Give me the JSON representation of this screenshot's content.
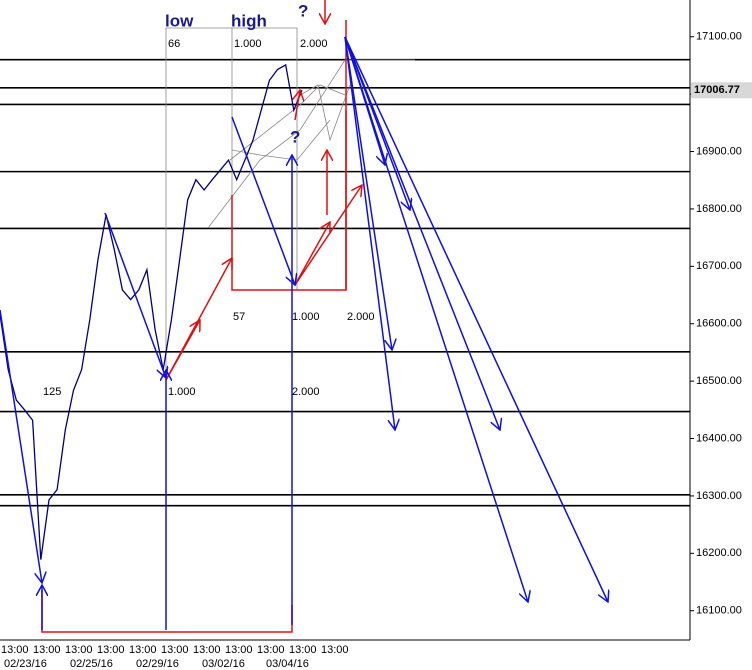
{
  "chart_data": {
    "type": "line",
    "color": "#000080",
    "values": [
      16616,
      16520,
      16467,
      16450,
      16432,
      16189,
      16293,
      16311,
      16415,
      16484,
      16520,
      16607,
      16711,
      16790,
      16729,
      16659,
      16642,
      16659,
      16694,
      16590,
      16520,
      16607,
      16711,
      16816,
      16851,
      16833,
      16851,
      16868,
      16885,
      16851,
      16885,
      16920,
      16972,
      17024,
      17043,
      17051,
      16972,
      17007
    ],
    "ylim": [
      16049,
      17164
    ],
    "yticks": [
      {
        "value": 16100,
        "label": "16100.00"
      },
      {
        "value": 16200,
        "label": "16200.00"
      },
      {
        "value": 16300,
        "label": "16300.00"
      },
      {
        "value": 16400,
        "label": "16400.00"
      },
      {
        "value": 16500,
        "label": "16500.00"
      },
      {
        "value": 16600,
        "label": "16600.00"
      },
      {
        "value": 16700,
        "label": "16700.00"
      },
      {
        "value": 16800,
        "label": "16800.00"
      },
      {
        "value": 16900,
        "label": "16900.00"
      },
      {
        "value": 17000,
        "label": "17000.00"
      },
      {
        "value": 17100,
        "label": "17100.00"
      }
    ],
    "last_price": 17006.77,
    "hlines": [
      17060,
      17011,
      16982,
      16865,
      16766,
      16551,
      16447,
      16302,
      16283
    ],
    "time_labels": [
      "13:00",
      "13:00",
      "13:00",
      "13:00",
      "13:00",
      "13:00",
      "13:00",
      "13:00",
      "13:00",
      "13:00",
      "13:00"
    ],
    "date_labels": [
      "02/23/16",
      "02/25/16",
      "02/29/16",
      "03/02/16",
      "03/04/16"
    ],
    "annotations": [
      "low",
      "high",
      "?",
      "66",
      "1.000",
      "2.000",
      "?",
      "57",
      "1.000",
      "2.000",
      "125",
      "1.000",
      "2.000"
    ]
  }
}
